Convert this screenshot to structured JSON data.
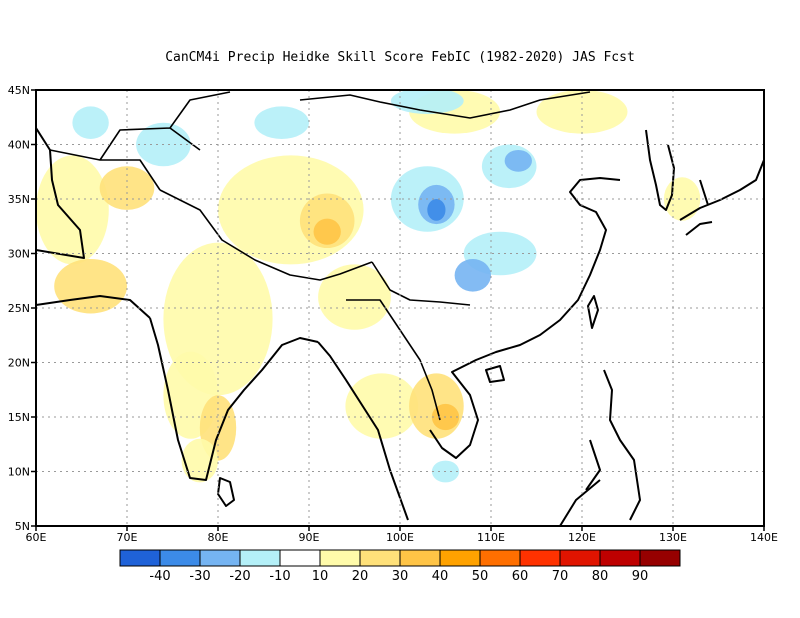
{
  "title": "CanCM4i Precip Heidke Skill Score FebIC (1982-2020) JAS Fcst",
  "chart_data": {
    "type": "heatmap",
    "xlim": [
      60,
      140
    ],
    "ylim": [
      5,
      45
    ],
    "x_ticks": [
      {
        "value": 60,
        "label": "60E"
      },
      {
        "value": 70,
        "label": "70E"
      },
      {
        "value": 80,
        "label": "80E"
      },
      {
        "value": 90,
        "label": "90E"
      },
      {
        "value": 100,
        "label": "100E"
      },
      {
        "value": 110,
        "label": "110E"
      },
      {
        "value": 120,
        "label": "120E"
      },
      {
        "value": 130,
        "label": "130E"
      },
      {
        "value": 140,
        "label": "140E"
      }
    ],
    "y_ticks": [
      {
        "value": 5,
        "label": "5N"
      },
      {
        "value": 10,
        "label": "10N"
      },
      {
        "value": 15,
        "label": "15N"
      },
      {
        "value": 20,
        "label": "20N"
      },
      {
        "value": 25,
        "label": "25N"
      },
      {
        "value": 30,
        "label": "30N"
      },
      {
        "value": 35,
        "label": "35N"
      },
      {
        "value": 40,
        "label": "40N"
      },
      {
        "value": 45,
        "label": "45N"
      }
    ],
    "grid": true,
    "colorbar": {
      "colors": [
        "#1f62d8",
        "#3c8be8",
        "#75b4f2",
        "#b4f0f8",
        "#ffffff",
        "#fffbaa",
        "#ffe17a",
        "#ffc446",
        "#ffa200",
        "#ff6f00",
        "#ff3200",
        "#e01400",
        "#be0000",
        "#960000"
      ],
      "labels": [
        "-40",
        "-30",
        "-20",
        "-10",
        "10",
        "20",
        "30",
        "40",
        "50",
        "60",
        "70",
        "80",
        "90"
      ]
    },
    "regions": [
      {
        "lon": 64,
        "lat": 34,
        "rx": 4,
        "ry": 5,
        "level": 20
      },
      {
        "lon": 66,
        "lat": 27,
        "rx": 4,
        "ry": 2.5,
        "level": 30
      },
      {
        "lon": 70,
        "lat": 36,
        "rx": 3,
        "ry": 2,
        "level": 30
      },
      {
        "lon": 80,
        "lat": 24,
        "rx": 6,
        "ry": 7,
        "level": 20
      },
      {
        "lon": 77,
        "lat": 17,
        "rx": 3,
        "ry": 4,
        "level": 20
      },
      {
        "lon": 80,
        "lat": 14,
        "rx": 2,
        "ry": 3,
        "level": 30
      },
      {
        "lon": 78,
        "lat": 11,
        "rx": 2,
        "ry": 2,
        "level": 20
      },
      {
        "lon": 88,
        "lat": 34,
        "rx": 8,
        "ry": 5,
        "level": 20
      },
      {
        "lon": 92,
        "lat": 33,
        "rx": 3,
        "ry": 2.5,
        "level": 30
      },
      {
        "lon": 92,
        "lat": 32,
        "rx": 1.5,
        "ry": 1.2,
        "level": 40
      },
      {
        "lon": 95,
        "lat": 26,
        "rx": 4,
        "ry": 3,
        "level": 20
      },
      {
        "lon": 98,
        "lat": 16,
        "rx": 4,
        "ry": 3,
        "level": 20
      },
      {
        "lon": 104,
        "lat": 16,
        "rx": 3,
        "ry": 3,
        "level": 30
      },
      {
        "lon": 105,
        "lat": 15,
        "rx": 1.5,
        "ry": 1.2,
        "level": 40
      },
      {
        "lon": 106,
        "lat": 43,
        "rx": 5,
        "ry": 2,
        "level": 20
      },
      {
        "lon": 120,
        "lat": 43,
        "rx": 5,
        "ry": 2,
        "level": 20
      },
      {
        "lon": 131,
        "lat": 35,
        "rx": 2,
        "ry": 2,
        "level": 20
      },
      {
        "lon": 66,
        "lat": 42,
        "rx": 2,
        "ry": 1.5,
        "level": -10
      },
      {
        "lon": 74,
        "lat": 40,
        "rx": 3,
        "ry": 2,
        "level": -10
      },
      {
        "lon": 87,
        "lat": 42,
        "rx": 3,
        "ry": 1.5,
        "level": -10
      },
      {
        "lon": 103,
        "lat": 35,
        "rx": 4,
        "ry": 3,
        "level": -10
      },
      {
        "lon": 104,
        "lat": 34.5,
        "rx": 2,
        "ry": 1.8,
        "level": -20
      },
      {
        "lon": 104,
        "lat": 34,
        "rx": 1,
        "ry": 1,
        "level": -30
      },
      {
        "lon": 112,
        "lat": 38,
        "rx": 3,
        "ry": 2,
        "level": -10
      },
      {
        "lon": 113,
        "lat": 38.5,
        "rx": 1.5,
        "ry": 1,
        "level": -20
      },
      {
        "lon": 111,
        "lat": 30,
        "rx": 4,
        "ry": 2,
        "level": -10
      },
      {
        "lon": 108,
        "lat": 28,
        "rx": 2,
        "ry": 1.5,
        "level": -20
      },
      {
        "lon": 103,
        "lat": 44,
        "rx": 4,
        "ry": 1.2,
        "level": -10
      },
      {
        "lon": 105,
        "lat": 10,
        "rx": 1.5,
        "ry": 1,
        "level": -10
      }
    ]
  }
}
